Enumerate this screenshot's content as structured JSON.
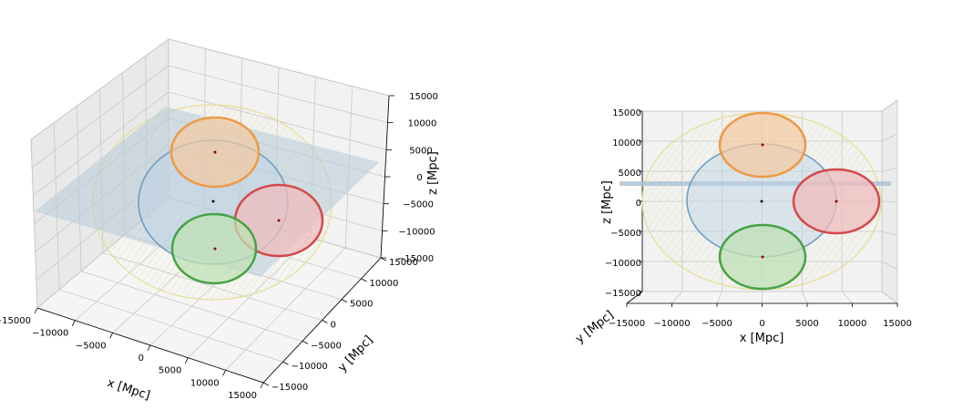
{
  "chart_data": [
    {
      "type": "scatter3d",
      "view": "perspective",
      "xlabel": "x [Mpc]",
      "ylabel": "y [Mpc]",
      "zlabel": "z [Mpc]",
      "xlim": [
        -15000,
        15000
      ],
      "ylim": [
        -15000,
        15000
      ],
      "zlim": [
        -15000,
        15000
      ],
      "xticks": [
        "−15000",
        "−10000",
        "−5000",
        "0",
        "5000",
        "10000",
        "15000"
      ],
      "yticks": [
        "−15000",
        "−10000",
        "−5000",
        "0",
        "5000",
        "10000",
        "15000"
      ],
      "zticks": [
        "−15000",
        "−10000",
        "−5000",
        "0",
        "5000",
        "10000",
        "15000"
      ],
      "grid": true
    },
    {
      "type": "scatter3d",
      "view": "front (x–z)",
      "xlabel": "x [Mpc]",
      "ylabel": "y [Mpc]",
      "zlabel": "z [Mpc]",
      "xlim": [
        -15000,
        15000
      ],
      "zlim": [
        -15000,
        15000
      ],
      "xticks": [
        "−15000",
        "−10000",
        "−5000",
        "0",
        "5000",
        "10000",
        "15000"
      ],
      "zticks": [
        "−15000",
        "−10000",
        "−5000",
        "0",
        "5000",
        "10000",
        "15000"
      ],
      "grid": true
    }
  ],
  "spheres": [
    {
      "color": "#e7d45a",
      "center": [
        0,
        0,
        0
      ],
      "radius": 14000,
      "opacity": "faint"
    },
    {
      "color": "#4a8fc0",
      "center": [
        0,
        0,
        0
      ],
      "radius": 9500
    },
    {
      "color": "#f0902a",
      "center": [
        0,
        0,
        9000
      ],
      "radius": 5500
    },
    {
      "color": "#d03a3a",
      "center": [
        9000,
        0,
        0
      ],
      "radius": 5500
    },
    {
      "color": "#3e9e3e",
      "center": [
        0,
        0,
        -9000
      ],
      "radius": 5500
    }
  ],
  "plane": {
    "color": "#9ab6d0",
    "z": 0,
    "extent": 15000
  }
}
